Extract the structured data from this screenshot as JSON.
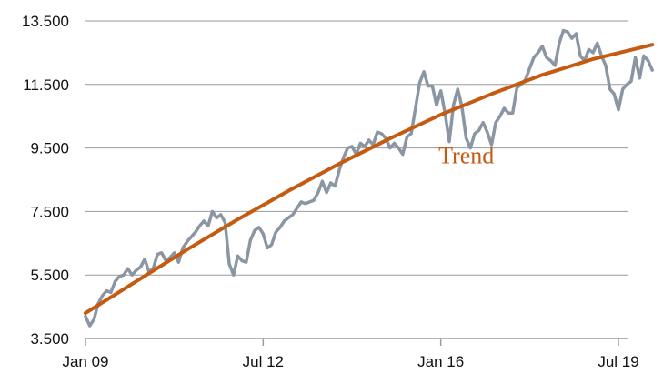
{
  "chart_data": {
    "type": "line",
    "title": "",
    "xlabel": "",
    "ylabel": "",
    "x_range": [
      "2009-01",
      "2019-08"
    ],
    "ylim": [
      3500,
      13500
    ],
    "grid": true,
    "y_ticks": [
      3500,
      5500,
      7500,
      9500,
      11500,
      13500
    ],
    "y_tick_labels": [
      "3.500",
      "5.500",
      "7.500",
      "9.500",
      "11.500",
      "13.500"
    ],
    "x_ticks": [
      "2009-01",
      "2012-07",
      "2016-01",
      "2019-07"
    ],
    "x_tick_labels": [
      "Jan 09",
      "Jul 12",
      "Jan 16",
      "Jul 19"
    ],
    "annotations": [
      {
        "text": "Trend",
        "x": "2016-01",
        "y": 9250,
        "series": "Trend"
      }
    ],
    "series": [
      {
        "name": "",
        "color": "#8a96a3",
        "points": [
          [
            "2009-01",
            4200
          ],
          [
            "2009-02",
            3900
          ],
          [
            "2009-03",
            4100
          ],
          [
            "2009-04",
            4600
          ],
          [
            "2009-05",
            4850
          ],
          [
            "2009-06",
            5000
          ],
          [
            "2009-07",
            4950
          ],
          [
            "2009-08",
            5300
          ],
          [
            "2009-09",
            5450
          ],
          [
            "2009-10",
            5500
          ],
          [
            "2009-11",
            5700
          ],
          [
            "2009-12",
            5500
          ],
          [
            "2010-01",
            5650
          ],
          [
            "2010-02",
            5750
          ],
          [
            "2010-03",
            6000
          ],
          [
            "2010-04",
            5600
          ],
          [
            "2010-05",
            5700
          ],
          [
            "2010-06",
            6150
          ],
          [
            "2010-07",
            6200
          ],
          [
            "2010-08",
            5950
          ],
          [
            "2010-09",
            6050
          ],
          [
            "2010-10",
            6200
          ],
          [
            "2010-11",
            5900
          ],
          [
            "2010-12",
            6350
          ],
          [
            "2011-01",
            6550
          ],
          [
            "2011-02",
            6700
          ],
          [
            "2011-03",
            6850
          ],
          [
            "2011-04",
            7050
          ],
          [
            "2011-05",
            7200
          ],
          [
            "2011-06",
            7050
          ],
          [
            "2011-07",
            7500
          ],
          [
            "2011-08",
            7300
          ],
          [
            "2011-09",
            7400
          ],
          [
            "2011-10",
            7150
          ],
          [
            "2011-11",
            5850
          ],
          [
            "2011-12",
            5500
          ],
          [
            "2012-01",
            6100
          ],
          [
            "2012-02",
            5950
          ],
          [
            "2012-03",
            5900
          ],
          [
            "2012-04",
            6600
          ],
          [
            "2012-05",
            6900
          ],
          [
            "2012-06",
            7000
          ],
          [
            "2012-07",
            6800
          ],
          [
            "2012-08",
            6350
          ],
          [
            "2012-09",
            6450
          ],
          [
            "2012-10",
            6850
          ],
          [
            "2012-11",
            7000
          ],
          [
            "2012-12",
            7200
          ],
          [
            "2013-01",
            7300
          ],
          [
            "2013-02",
            7400
          ],
          [
            "2013-03",
            7600
          ],
          [
            "2013-04",
            7800
          ],
          [
            "2013-05",
            7750
          ],
          [
            "2013-06",
            7800
          ],
          [
            "2013-07",
            7850
          ],
          [
            "2013-08",
            8100
          ],
          [
            "2013-09",
            8450
          ],
          [
            "2013-10",
            8100
          ],
          [
            "2013-11",
            8400
          ],
          [
            "2013-12",
            8300
          ],
          [
            "2014-01",
            8800
          ],
          [
            "2014-02",
            9200
          ],
          [
            "2014-03",
            9500
          ],
          [
            "2014-04",
            9550
          ],
          [
            "2014-05",
            9300
          ],
          [
            "2014-06",
            9650
          ],
          [
            "2014-07",
            9550
          ],
          [
            "2014-08",
            9750
          ],
          [
            "2014-09",
            9600
          ],
          [
            "2014-10",
            10000
          ],
          [
            "2014-11",
            9950
          ],
          [
            "2014-12",
            9800
          ],
          [
            "2015-01",
            9500
          ],
          [
            "2015-02",
            9650
          ],
          [
            "2015-03",
            9500
          ],
          [
            "2015-04",
            9300
          ],
          [
            "2015-05",
            9850
          ],
          [
            "2015-06",
            9950
          ],
          [
            "2015-07",
            10750
          ],
          [
            "2015-08",
            11550
          ],
          [
            "2015-09",
            11900
          ],
          [
            "2015-10",
            11450
          ],
          [
            "2015-11",
            11450
          ],
          [
            "2015-12",
            10850
          ],
          [
            "2016-01",
            11300
          ],
          [
            "2016-02",
            10600
          ],
          [
            "2016-03",
            9700
          ],
          [
            "2016-04",
            10850
          ],
          [
            "2016-05",
            11350
          ],
          [
            "2016-06",
            10800
          ],
          [
            "2016-07",
            9800
          ],
          [
            "2016-08",
            9500
          ],
          [
            "2016-09",
            9950
          ],
          [
            "2016-10",
            10050
          ],
          [
            "2016-11",
            10300
          ],
          [
            "2016-12",
            10000
          ],
          [
            "2017-01",
            9600
          ],
          [
            "2017-02",
            10300
          ],
          [
            "2017-03",
            10500
          ],
          [
            "2017-04",
            10750
          ],
          [
            "2017-05",
            10600
          ],
          [
            "2017-06",
            10600
          ],
          [
            "2017-07",
            11400
          ],
          [
            "2017-08",
            11500
          ],
          [
            "2017-09",
            11650
          ],
          [
            "2017-10",
            12000
          ],
          [
            "2017-11",
            12350
          ],
          [
            "2017-12",
            12500
          ],
          [
            "2018-01",
            12700
          ],
          [
            "2018-02",
            12350
          ],
          [
            "2018-03",
            12250
          ],
          [
            "2018-04",
            12100
          ],
          [
            "2018-05",
            12800
          ],
          [
            "2018-06",
            13200
          ],
          [
            "2018-07",
            13150
          ],
          [
            "2018-08",
            12950
          ],
          [
            "2018-09",
            13100
          ],
          [
            "2018-10",
            12400
          ],
          [
            "2018-11",
            12250
          ],
          [
            "2018-12",
            12600
          ],
          [
            "2019-01",
            12500
          ],
          [
            "2019-02",
            12800
          ],
          [
            "2019-03",
            12400
          ],
          [
            "2019-04",
            12100
          ],
          [
            "2019-05",
            11350
          ],
          [
            "2019-06",
            11200
          ],
          [
            "2019-07",
            10700
          ],
          [
            "2019-08",
            11350
          ],
          [
            "2019-09",
            11500
          ],
          [
            "2019-10",
            11600
          ],
          [
            "2019-11",
            12350
          ],
          [
            "2019-12",
            11700
          ],
          [
            "2020-01",
            12400
          ],
          [
            "2020-02",
            12250
          ],
          [
            "2020-03",
            11950
          ]
        ]
      },
      {
        "name": "Trend",
        "color": "#c55a11",
        "points": [
          [
            "2009-01",
            4300
          ],
          [
            "2010-01",
            5300
          ],
          [
            "2011-01",
            6300
          ],
          [
            "2012-01",
            7250
          ],
          [
            "2013-01",
            8150
          ],
          [
            "2014-01",
            9000
          ],
          [
            "2015-01",
            9800
          ],
          [
            "2016-01",
            10550
          ],
          [
            "2017-01",
            11200
          ],
          [
            "2018-01",
            11800
          ],
          [
            "2019-01",
            12300
          ],
          [
            "2020-03",
            12750
          ]
        ]
      }
    ]
  }
}
